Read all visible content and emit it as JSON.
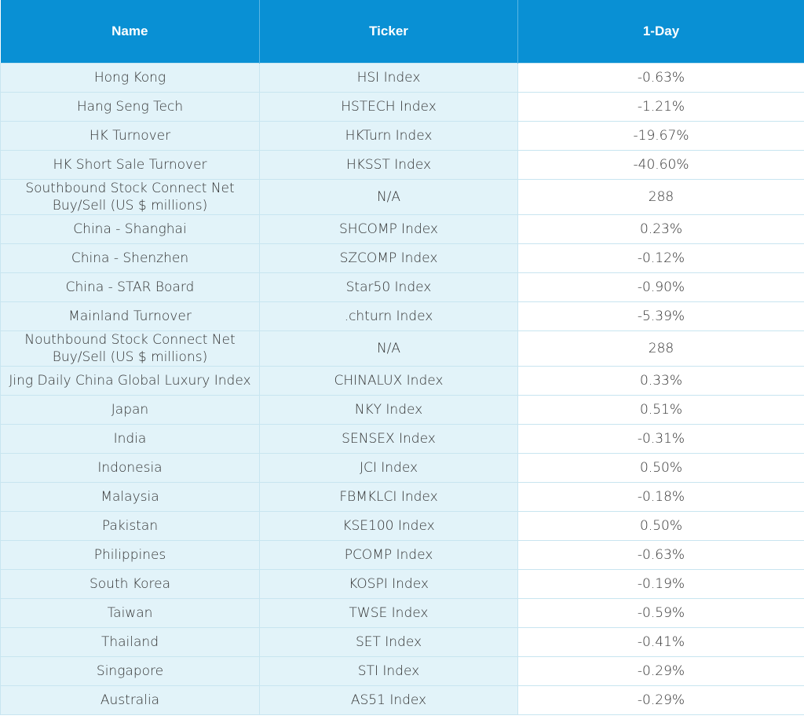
{
  "table": {
    "header": [
      "Name",
      "Ticker",
      "1-Day"
    ],
    "rows": [
      [
        "Hong Kong",
        "HSI Index",
        "-0.63%"
      ],
      [
        "Hang Seng Tech",
        "HSTECH Index",
        "-1.21%"
      ],
      [
        "HK Turnover",
        "HKTurn Index",
        "-19.67%"
      ],
      [
        "HK Short Sale Turnover",
        "HKSST Index",
        "-40.60%"
      ],
      [
        "Southbound Stock Connect Net\nBuy/Sell (US $ millions)",
        "N/A",
        "288"
      ],
      [
        "China - Shanghai",
        "SHCOMP Index",
        "0.23%"
      ],
      [
        "China - Shenzhen",
        "SZCOMP Index",
        "-0.12%"
      ],
      [
        "China - STAR Board",
        "Star50 Index",
        "-0.90%"
      ],
      [
        "Mainland Turnover",
        ".chturn Index",
        "-5.39%"
      ],
      [
        "Nouthbound Stock Connect Net\nBuy/Sell (US $ millions)",
        "N/A",
        "288"
      ],
      [
        "Jing Daily China Global Luxury Index",
        "CHINALUX Index",
        "0.33%"
      ],
      [
        "Japan",
        "NKY Index",
        "0.51%"
      ],
      [
        "India",
        "SENSEX Index",
        "-0.31%"
      ],
      [
        "Indonesia",
        "JCI Index",
        "0.50%"
      ],
      [
        "Malaysia",
        "FBMKLCI Index",
        "-0.18%"
      ],
      [
        "Pakistan",
        "KSE100 Index",
        "0.50%"
      ],
      [
        "Philippines",
        "PCOMP Index",
        "-0.63%"
      ],
      [
        "South Korea",
        "KOSPI Index",
        "-0.19%"
      ],
      [
        "Taiwan",
        "TWSE Index",
        "-0.59%"
      ],
      [
        "Thailand",
        "SET Index",
        "-0.41%"
      ],
      [
        "Singapore",
        "STI Index",
        "-0.29%"
      ],
      [
        "Australia",
        "AS51 Index",
        "-0.29%"
      ]
    ]
  }
}
